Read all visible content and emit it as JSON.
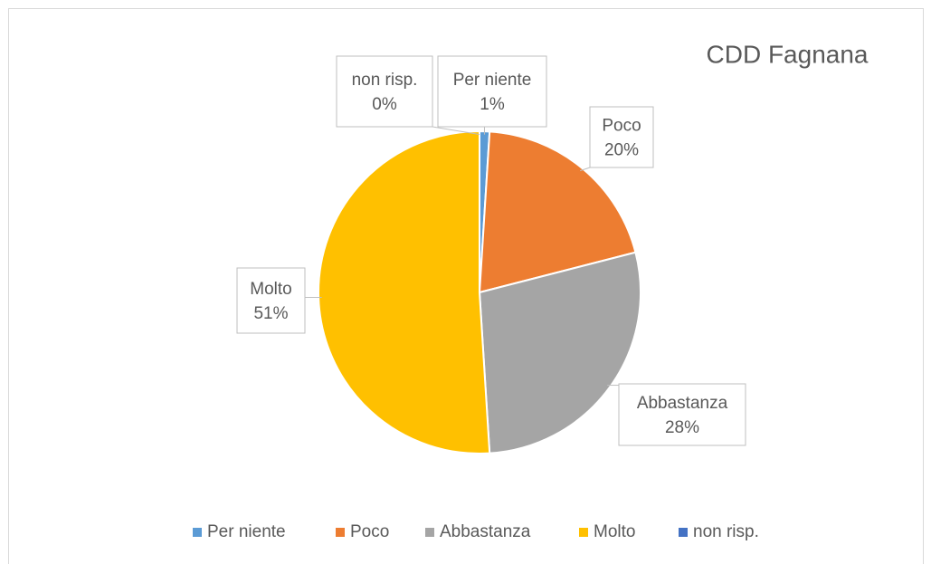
{
  "chart_data": {
    "type": "pie",
    "title": "CDD Fagnana",
    "categories": [
      "Per niente",
      "Poco",
      "Abbastanza",
      "Molto",
      "non risp."
    ],
    "values": [
      1,
      20,
      28,
      51,
      0
    ],
    "value_labels": [
      "1%",
      "20%",
      "28%",
      "51%",
      "0%"
    ],
    "colors": [
      "#5b9bd5",
      "#ed7d31",
      "#a5a5a5",
      "#ffc000",
      "#4472c4"
    ],
    "legend": "bottom"
  }
}
